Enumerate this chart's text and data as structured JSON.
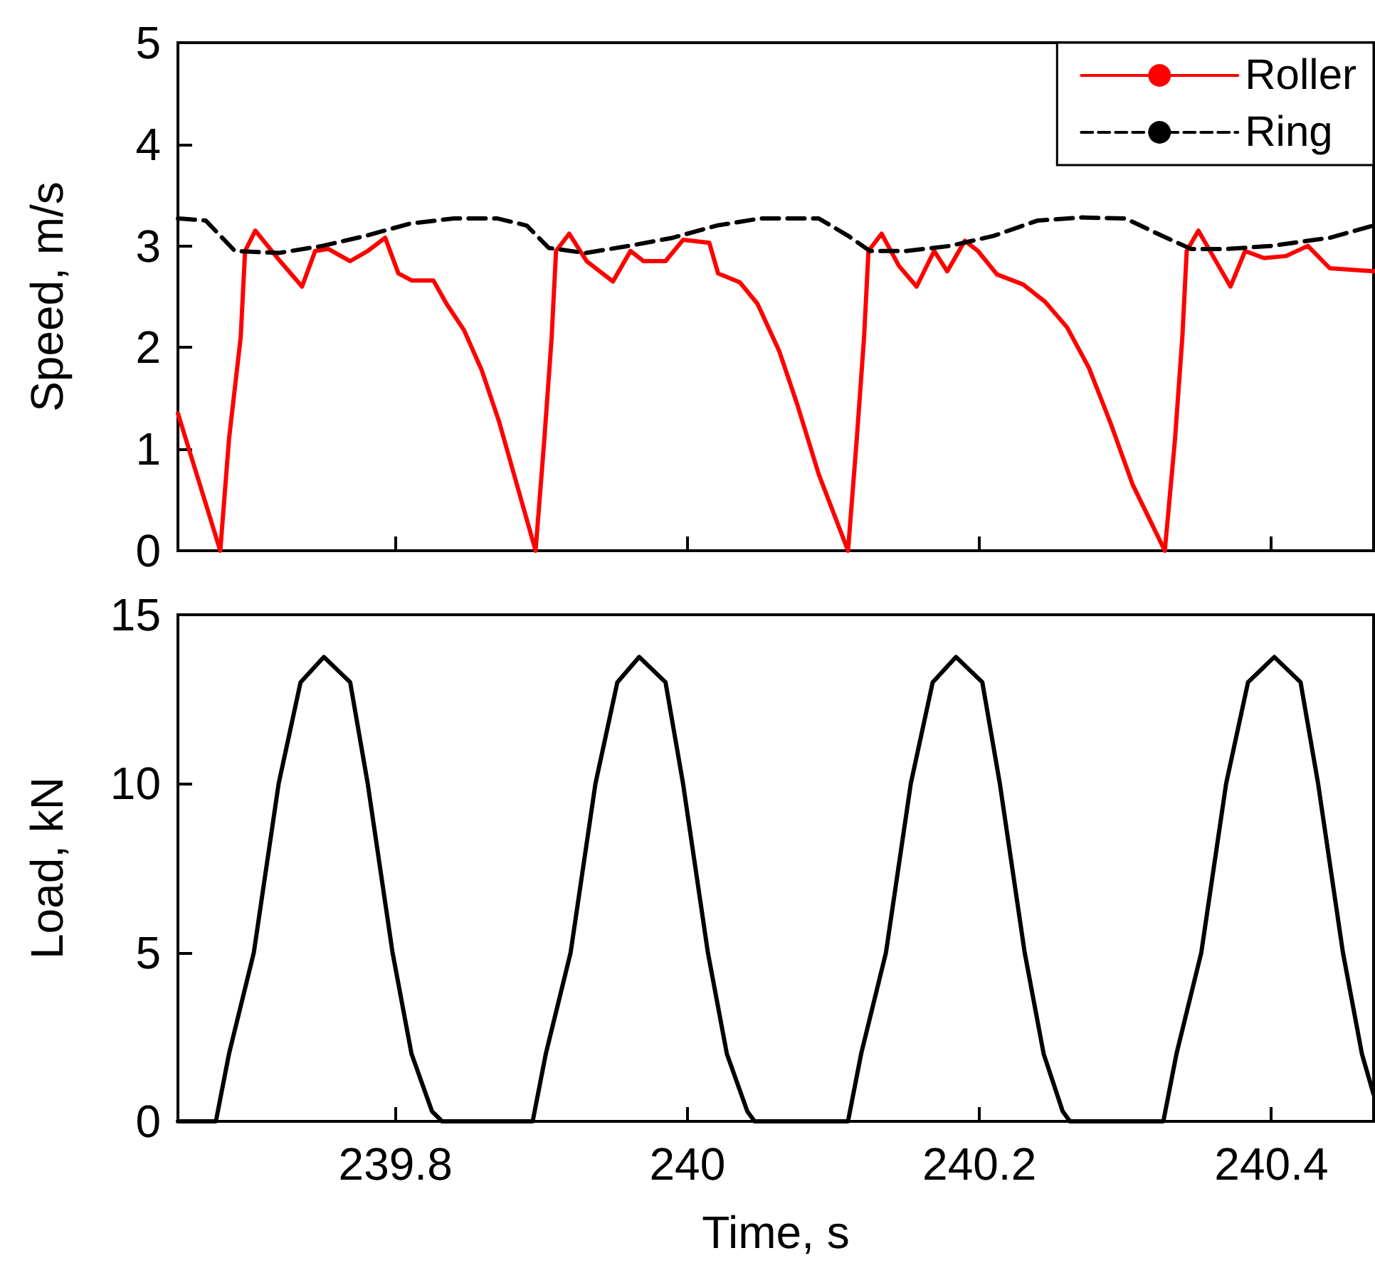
{
  "chart_data": [
    {
      "type": "line",
      "ylabel": "Speed, m/s",
      "xlim": [
        239.651,
        240.47
      ],
      "xticks": [
        239.8,
        240,
        240.2,
        240.4
      ],
      "ylim": [
        0,
        5
      ],
      "yticks": [
        0,
        1,
        2,
        3,
        4,
        5
      ],
      "tick_labels": "y",
      "legend": "top right",
      "series": [
        {
          "name": "Roller",
          "color": "#ff0000",
          "line_style": "solid",
          "x": [
            239.651,
            239.68,
            239.686,
            239.694,
            239.697,
            239.704,
            239.721,
            239.736,
            239.745,
            239.754,
            239.769,
            239.781,
            239.793,
            239.802,
            239.811,
            239.826,
            239.835,
            239.847,
            239.859,
            239.871,
            239.883,
            239.896,
            239.902,
            239.907,
            239.91,
            239.919,
            239.931,
            239.949,
            239.961,
            239.97,
            239.985,
            239.997,
            240.015,
            240.021,
            240.036,
            240.048,
            240.063,
            240.075,
            240.09,
            240.11,
            240.116,
            240.121,
            240.124,
            240.133,
            240.145,
            240.157,
            240.169,
            240.178,
            240.19,
            240.199,
            240.212,
            240.23,
            240.245,
            240.26,
            240.275,
            240.29,
            240.305,
            240.327,
            240.334,
            240.339,
            240.342,
            240.35,
            240.36,
            240.372,
            240.382,
            240.395,
            240.41,
            240.425,
            240.44,
            240.47
          ],
          "values": [
            1.35,
            0,
            1.1,
            2.1,
            2.95,
            3.15,
            2.85,
            2.6,
            2.95,
            2.97,
            2.85,
            2.95,
            3.08,
            2.73,
            2.66,
            2.66,
            2.43,
            2.17,
            1.78,
            1.27,
            0.66,
            0,
            1.1,
            2.1,
            2.95,
            3.12,
            2.85,
            2.65,
            2.95,
            2.85,
            2.85,
            3.06,
            3.03,
            2.73,
            2.64,
            2.43,
            1.96,
            1.45,
            0.75,
            0,
            1.1,
            2.1,
            2.95,
            3.12,
            2.8,
            2.6,
            2.95,
            2.75,
            3.05,
            2.95,
            2.72,
            2.62,
            2.45,
            2.2,
            1.8,
            1.25,
            0.65,
            0,
            1.1,
            2.1,
            2.95,
            3.15,
            2.9,
            2.6,
            2.95,
            2.88,
            2.9,
            3.0,
            2.78,
            2.75
          ]
        },
        {
          "name": "Ring",
          "color": "#000000",
          "line_style": "dashed",
          "x": [
            239.651,
            239.67,
            239.69,
            239.72,
            239.75,
            239.78,
            239.81,
            239.84,
            239.87,
            239.89,
            239.905,
            239.93,
            239.96,
            239.99,
            240.02,
            240.05,
            240.09,
            240.11,
            240.125,
            240.15,
            240.18,
            240.21,
            240.24,
            240.27,
            240.3,
            240.325,
            240.345,
            240.37,
            240.4,
            240.44,
            240.47
          ],
          "values": [
            3.27,
            3.25,
            2.95,
            2.93,
            3.0,
            3.1,
            3.22,
            3.27,
            3.27,
            3.2,
            2.98,
            2.93,
            3.0,
            3.08,
            3.2,
            3.27,
            3.27,
            3.1,
            2.95,
            2.95,
            3.0,
            3.1,
            3.25,
            3.28,
            3.27,
            3.1,
            2.97,
            2.97,
            3.0,
            3.08,
            3.2
          ]
        }
      ]
    },
    {
      "type": "line",
      "xlabel": "Time, s",
      "ylabel": "Load, kN",
      "xlim": [
        239.651,
        240.47
      ],
      "xticks": [
        239.8,
        240,
        240.2,
        240.4
      ],
      "ylim": [
        0,
        15
      ],
      "yticks": [
        0,
        5,
        10,
        15
      ],
      "series": [
        {
          "color": "#000000",
          "line_style": "solid",
          "x": [
            239.651,
            239.677,
            239.686,
            239.703,
            239.72,
            239.735,
            239.751,
            239.769,
            239.781,
            239.798,
            239.811,
            239.825,
            239.832,
            239.894,
            239.903,
            239.92,
            239.937,
            239.952,
            239.967,
            239.985,
            239.997,
            240.014,
            240.027,
            240.041,
            240.046,
            240.11,
            240.119,
            240.136,
            240.153,
            240.168,
            240.184,
            240.202,
            240.214,
            240.231,
            240.244,
            240.257,
            240.262,
            240.326,
            240.335,
            240.352,
            240.369,
            240.384,
            240.402,
            240.42,
            240.432,
            240.449,
            240.462,
            240.47
          ],
          "values": [
            0,
            0,
            2,
            5,
            10,
            13,
            13.75,
            13,
            10,
            5,
            2,
            0.3,
            0,
            0,
            2,
            5,
            10,
            13,
            13.75,
            13,
            10,
            5,
            2,
            0.3,
            0,
            0,
            2,
            5,
            10,
            13,
            13.75,
            13,
            10,
            5,
            2,
            0.3,
            0,
            0,
            2,
            5,
            10,
            13,
            13.75,
            13,
            10,
            5,
            2,
            0.8
          ]
        }
      ]
    }
  ]
}
